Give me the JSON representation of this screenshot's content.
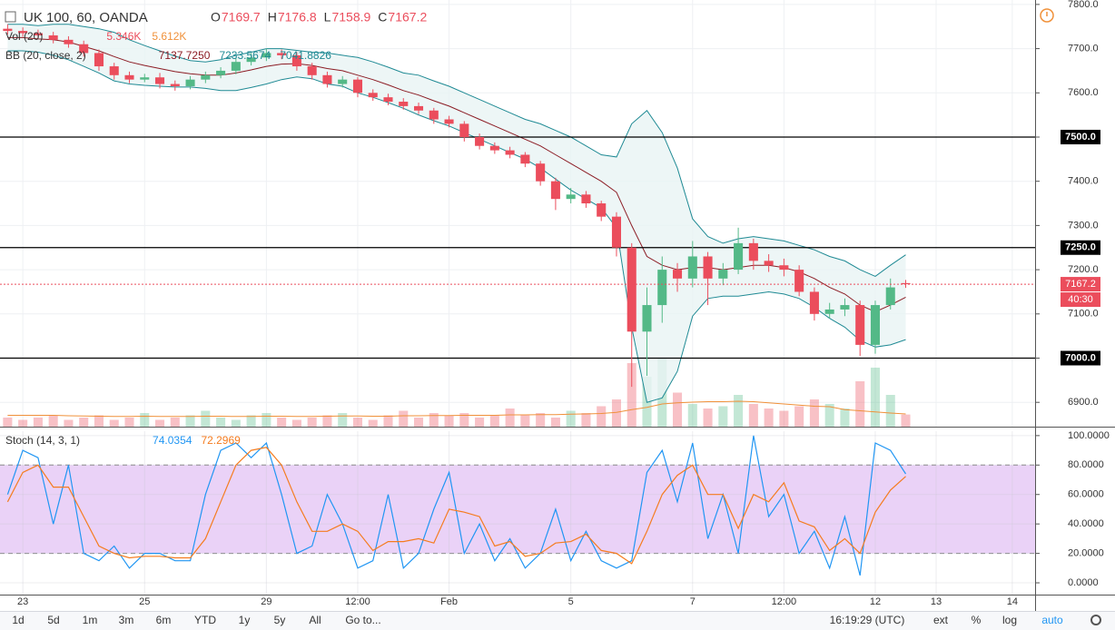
{
  "chart_data": [
    {
      "type": "candlestick",
      "title": "UK 100, 60, OANDA",
      "ohlc_labels": [
        "O",
        "H",
        "L",
        "C"
      ],
      "categories": [
        null,
        "23",
        null,
        null,
        null,
        null,
        null,
        null,
        null,
        "25",
        null,
        null,
        null,
        null,
        null,
        null,
        null,
        "29",
        null,
        null,
        null,
        null,
        null,
        "12:00",
        null,
        null,
        null,
        null,
        null,
        "Feb",
        null,
        null,
        null,
        null,
        null,
        null,
        null,
        "5",
        null,
        null,
        null,
        null,
        null,
        null,
        null,
        "7",
        null,
        null,
        null,
        null,
        null,
        "12:00",
        null,
        null,
        null,
        null,
        null,
        "12",
        null,
        null,
        null,
        "13",
        null,
        null,
        null,
        null,
        "14",
        null
      ],
      "open": [
        7745,
        7740,
        7735,
        7730,
        7720,
        7710,
        7690,
        7660,
        7640,
        7630,
        7635,
        7620,
        7615,
        7630,
        7640,
        7650,
        7670,
        7680,
        7690,
        7685,
        7660,
        7640,
        7620,
        7630,
        7600,
        7590,
        7580,
        7570,
        7560,
        7540,
        7530,
        7500,
        7480,
        7470,
        7460,
        7440,
        7400,
        7360,
        7370,
        7350,
        7320,
        7250,
        7060,
        7120,
        7200,
        7180,
        7230,
        7180,
        7200,
        7260,
        7220,
        7210,
        7200,
        7150,
        7100,
        7110,
        7120,
        7030,
        7120,
        7169.7,
        null,
        null,
        null,
        null,
        null,
        null,
        null,
        null
      ],
      "high": [
        7755,
        7748,
        7743,
        7738,
        7728,
        7718,
        7698,
        7668,
        7648,
        7643,
        7645,
        7628,
        7638,
        7648,
        7658,
        7678,
        7690,
        7700,
        7698,
        7692,
        7668,
        7648,
        7638,
        7636,
        7608,
        7598,
        7588,
        7578,
        7566,
        7548,
        7536,
        7508,
        7488,
        7478,
        7466,
        7446,
        7408,
        7385,
        7378,
        7356,
        7330,
        7260,
        7160,
        7230,
        7215,
        7265,
        7240,
        7215,
        7295,
        7270,
        7235,
        7225,
        7210,
        7160,
        7125,
        7135,
        7130,
        7130,
        7180,
        7176.8,
        null,
        null,
        null,
        null,
        null,
        null,
        null,
        null
      ],
      "low": [
        7732,
        7727,
        7722,
        7712,
        7702,
        7682,
        7650,
        7630,
        7622,
        7624,
        7610,
        7605,
        7608,
        7622,
        7633,
        7642,
        7662,
        7672,
        7676,
        7650,
        7630,
        7612,
        7612,
        7590,
        7582,
        7572,
        7562,
        7552,
        7530,
        7522,
        7490,
        7472,
        7462,
        7452,
        7432,
        7390,
        7335,
        7350,
        7340,
        7310,
        7230,
        6935,
        6960,
        7080,
        7150,
        7160,
        7120,
        7165,
        7190,
        7200,
        7195,
        7185,
        7140,
        7085,
        7090,
        7095,
        7005,
        7010,
        7110,
        7158.9,
        null,
        null,
        null,
        null,
        null,
        null,
        null,
        null
      ],
      "close": [
        7740,
        7735,
        7730,
        7720,
        7710,
        7690,
        7660,
        7640,
        7630,
        7635,
        7620,
        7615,
        7630,
        7640,
        7650,
        7670,
        7680,
        7690,
        7685,
        7660,
        7640,
        7620,
        7630,
        7600,
        7590,
        7580,
        7570,
        7560,
        7540,
        7530,
        7500,
        7480,
        7470,
        7460,
        7440,
        7400,
        7360,
        7370,
        7350,
        7320,
        7250,
        7060,
        7120,
        7200,
        7180,
        7230,
        7180,
        7200,
        7260,
        7220,
        7210,
        7200,
        7150,
        7100,
        7110,
        7120,
        7030,
        7120,
        7160,
        7167.2,
        null,
        null,
        null,
        null,
        null,
        null,
        null,
        null
      ],
      "up_color": "#53b987",
      "down_color": "#eb4d5c",
      "ylim": [
        6845,
        7810
      ],
      "yticks": [
        {
          "value": 6900,
          "label": "6900.0"
        },
        {
          "value": 7000,
          "label": "7000.0"
        },
        {
          "value": 7100,
          "label": "7100.0"
        },
        {
          "value": 7200,
          "label": "7200.0"
        },
        {
          "value": 7300,
          "label": "7300.0"
        },
        {
          "value": 7400,
          "label": "7400.0"
        },
        {
          "value": 7500,
          "label": "7500.0"
        },
        {
          "value": 7600,
          "label": "7600.0"
        },
        {
          "value": 7700,
          "label": "7700.0"
        },
        {
          "value": 7800,
          "label": "7800.0"
        }
      ],
      "grid": true,
      "hlines": [
        {
          "value": 7500,
          "label": "7500.0"
        },
        {
          "value": 7250,
          "label": "7250.0"
        },
        {
          "value": 7000,
          "label": "7000.0"
        }
      ],
      "countdown": "40:30",
      "volume": {
        "name": "Vol (20)",
        "legend_label": "5.346K",
        "ylim": [
          0,
          30
        ],
        "values": [
          4,
          3,
          4,
          5,
          3,
          4,
          5,
          3,
          4,
          6,
          3,
          4,
          5,
          7,
          4,
          3,
          5,
          6,
          4,
          3,
          4,
          5,
          6,
          4,
          3,
          5,
          7,
          4,
          6,
          5,
          6,
          4,
          5,
          8,
          5,
          6,
          4,
          7,
          6,
          9,
          12,
          28,
          22,
          30,
          15,
          10,
          8,
          9,
          14,
          10,
          8,
          7,
          9,
          12,
          10,
          8,
          20,
          26,
          14,
          5.346,
          null,
          null,
          null,
          null,
          null,
          null,
          null,
          null
        ],
        "ma": {
          "color": "#f0913a",
          "legend_label": "5.612K",
          "values": [
            5,
            5,
            5,
            5,
            4.8,
            4.7,
            4.6,
            4.5,
            4.5,
            4.6,
            4.5,
            4.5,
            4.5,
            4.6,
            4.6,
            4.5,
            4.5,
            4.6,
            4.6,
            4.5,
            4.5,
            4.6,
            4.7,
            4.7,
            4.6,
            4.6,
            4.8,
            4.8,
            4.9,
            4.9,
            5,
            5,
            5,
            5.2,
            5.2,
            5.3,
            5.3,
            5.5,
            5.6,
            5.8,
            6.3,
            7.5,
            8.5,
            10,
            10.5,
            10.8,
            11,
            11,
            11.2,
            11,
            10.5,
            10,
            9.5,
            9,
            8.8,
            7.5,
            7,
            6.5,
            6,
            5.612,
            null,
            null,
            null,
            null,
            null,
            null,
            null,
            null
          ]
        }
      },
      "bollinger": {
        "name": "BB (20, close, 2)",
        "fill": "#e8f4f4",
        "series": [
          {
            "color": "#8c1c24",
            "legend_label": "7137.7250",
            "values": [
              7725,
              7725,
              7722,
              7720,
              7715,
              7705,
              7695,
              7682,
              7670,
              7662,
              7655,
              7648,
              7643,
              7640,
              7640,
              7645,
              7652,
              7660,
              7665,
              7666,
              7662,
              7655,
              7650,
              7640,
              7630,
              7618,
              7605,
              7595,
              7582,
              7570,
              7555,
              7540,
              7525,
              7510,
              7495,
              7480,
              7460,
              7440,
              7420,
              7400,
              7375,
              7300,
              7230,
              7210,
              7200,
              7205,
              7205,
              7200,
              7205,
              7210,
              7210,
              7205,
              7195,
              7180,
              7160,
              7145,
              7120,
              7105,
              7120,
              7137.725,
              null,
              null,
              null,
              null,
              null,
              null,
              null,
              null
            ]
          },
          {
            "color": "#1f8a94",
            "legend_label": "7233.5674",
            "values": [
              7755,
              7755,
              7752,
              7755,
              7755,
              7750,
              7745,
              7737,
              7720,
              7707,
              7695,
              7683,
              7673,
              7670,
              7675,
              7685,
              7692,
              7700,
              7700,
              7696,
              7692,
              7690,
              7685,
              7680,
              7670,
              7658,
              7645,
              7640,
              7627,
              7615,
              7600,
              7585,
              7570,
              7555,
              7540,
              7530,
              7515,
              7500,
              7480,
              7460,
              7455,
              7530,
              7560,
              7510,
              7430,
              7315,
              7275,
              7260,
              7270,
              7275,
              7270,
              7265,
              7255,
              7245,
              7230,
              7220,
              7200,
              7185,
              7210,
              7233.5674,
              null,
              null,
              null,
              null,
              null,
              null,
              null,
              null
            ]
          },
          {
            "color": "#1f8a94",
            "legend_label": "7041.8826",
            "values": [
              7695,
              7695,
              7692,
              7685,
              7675,
              7660,
              7645,
              7627,
              7620,
              7617,
              7615,
              7613,
              7613,
              7610,
              7605,
              7605,
              7612,
              7620,
              7630,
              7636,
              7632,
              7620,
              7615,
              7600,
              7590,
              7578,
              7565,
              7550,
              7537,
              7525,
              7510,
              7495,
              7480,
              7465,
              7450,
              7430,
              7405,
              7380,
              7360,
              7340,
              7295,
              7070,
              6900,
              6910,
              6970,
              7095,
              7135,
              7140,
              7140,
              7145,
              7150,
              7145,
              7135,
              7115,
              7090,
              7070,
              7040,
              7025,
              7030,
              7041.8826,
              null,
              null,
              null,
              null,
              null,
              null,
              null,
              null
            ]
          }
        ]
      }
    },
    {
      "type": "line",
      "title": "Stoch (14, 3, 1)",
      "band_color": "#ead2f7",
      "bands": [
        20,
        80
      ],
      "ylim": [
        -8,
        103
      ],
      "yticks": [
        {
          "value": 0,
          "label": "0.0000"
        },
        {
          "value": 20,
          "label": "20.0000"
        },
        {
          "value": 40,
          "label": "40.0000"
        },
        {
          "value": 60,
          "label": "60.0000"
        },
        {
          "value": 80,
          "label": "80.0000"
        },
        {
          "value": 100,
          "label": "100.0000"
        }
      ],
      "grid": true,
      "series": [
        {
          "color": "#2196f3",
          "values": [
            60,
            90,
            85,
            40,
            80,
            20,
            15,
            25,
            10,
            20,
            20,
            15,
            15,
            60,
            90,
            95,
            85,
            95,
            60,
            20,
            25,
            60,
            40,
            10,
            15,
            60,
            10,
            20,
            50,
            75,
            20,
            40,
            15,
            30,
            10,
            20,
            50,
            15,
            35,
            15,
            10,
            15,
            75,
            90,
            55,
            95,
            30,
            60,
            20,
            100,
            45,
            60,
            20,
            35,
            10,
            45,
            5,
            95,
            90,
            74.0354,
            null,
            null,
            null,
            null,
            null,
            null,
            null,
            null
          ]
        },
        {
          "color": "#f57c1f",
          "values": [
            55,
            75,
            80,
            65,
            65,
            45,
            25,
            20,
            17,
            18,
            18,
            17,
            17,
            30,
            55,
            80,
            90,
            92,
            80,
            55,
            35,
            35,
            40,
            35,
            22,
            28,
            28,
            30,
            27,
            50,
            48,
            45,
            25,
            28,
            18,
            20,
            27,
            28,
            33,
            22,
            20,
            13,
            35,
            60,
            73,
            80,
            60,
            60,
            37,
            60,
            55,
            68,
            42,
            38,
            22,
            30,
            20,
            48,
            63,
            72.2969,
            null,
            null,
            null,
            null,
            null,
            null,
            null,
            null
          ]
        }
      ]
    }
  ],
  "toolbar": {
    "ranges": [
      "1d",
      "5d",
      "1m",
      "3m",
      "6m",
      "YTD",
      "1y",
      "5y",
      "All"
    ],
    "goto": "Go to...",
    "clock": "16:19:29 (UTC)",
    "options": [
      "ext",
      "%",
      "log",
      "auto"
    ]
  }
}
